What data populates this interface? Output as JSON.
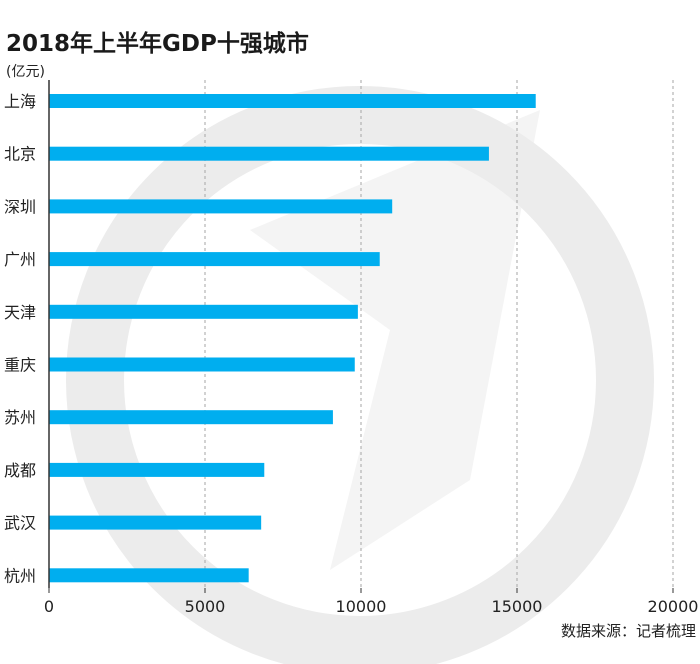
{
  "title": "2018年上半年GDP十强城市",
  "unit": "(亿元)",
  "source": "数据来源：记者梳理",
  "colors": {
    "bar": "#00aeef",
    "axis": "#333333",
    "grid": "#a6a6a6",
    "watermark": "#ececec"
  },
  "chart_data": {
    "type": "bar",
    "orientation": "horizontal",
    "categories": [
      "上海",
      "北京",
      "深圳",
      "广州",
      "天津",
      "重庆",
      "苏州",
      "成都",
      "武汉",
      "杭州"
    ],
    "values": [
      15600,
      14100,
      11000,
      10600,
      9900,
      9800,
      9100,
      6900,
      6800,
      6400
    ],
    "title": "2018年上半年GDP十强城市",
    "xlabel": "",
    "ylabel": "(亿元)",
    "xlim": [
      0,
      20000
    ],
    "xticks": [
      "0",
      "5000",
      "10000",
      "15000",
      "20000"
    ],
    "grid": "vertical-dashed"
  }
}
